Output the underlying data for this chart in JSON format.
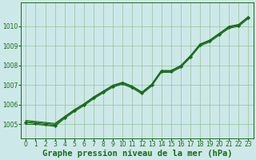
{
  "title": "Graphe pression niveau de la mer (hPa)",
  "bg_color": "#cde8e8",
  "plot_bg_color": "#cde8e8",
  "grid_color": "#88bb88",
  "line_color": "#1a6b1a",
  "marker_color": "#1a6b1a",
  "xlim": [
    -0.5,
    23.5
  ],
  "ylim": [
    1004.3,
    1011.2
  ],
  "yticks": [
    1005,
    1006,
    1007,
    1008,
    1009,
    1010
  ],
  "xticks": [
    0,
    1,
    2,
    3,
    4,
    5,
    6,
    7,
    8,
    9,
    10,
    11,
    12,
    13,
    14,
    15,
    16,
    17,
    18,
    19,
    20,
    21,
    22,
    23
  ],
  "series": [
    [
      1005.2,
      1005.15,
      1005.1,
      1005.05,
      1005.4,
      1005.75,
      1006.05,
      1006.4,
      1006.7,
      1007.0,
      1007.15,
      1006.95,
      1006.65,
      1007.05,
      1007.75,
      1007.75,
      1008.0,
      1008.5,
      1009.1,
      1009.3,
      1009.65,
      1010.0,
      1010.1,
      1010.5
    ],
    [
      1005.1,
      1005.05,
      1005.0,
      1004.95,
      1005.35,
      1005.7,
      1006.0,
      1006.35,
      1006.65,
      1006.95,
      1007.1,
      1006.9,
      1006.6,
      1007.0,
      1007.7,
      1007.7,
      1007.95,
      1008.45,
      1009.05,
      1009.25,
      1009.6,
      1009.95,
      1010.05,
      1010.45
    ],
    [
      1005.15,
      1005.1,
      1005.05,
      1005.0,
      1005.38,
      1005.72,
      1006.02,
      1006.37,
      1006.67,
      1006.97,
      1007.12,
      1006.92,
      1006.62,
      1007.02,
      1007.72,
      1007.72,
      1007.97,
      1008.47,
      1009.07,
      1009.27,
      1009.62,
      1009.97,
      1010.07,
      1010.47
    ],
    [
      1005.0,
      1005.0,
      1004.95,
      1004.9,
      1005.3,
      1005.65,
      1005.95,
      1006.3,
      1006.6,
      1006.9,
      1007.05,
      1006.85,
      1006.55,
      1006.95,
      1007.65,
      1007.65,
      1007.9,
      1008.4,
      1009.0,
      1009.2,
      1009.55,
      1009.9,
      1010.0,
      1010.4
    ]
  ],
  "marker_series_idx": 1,
  "title_fontsize": 7.5,
  "tick_fontsize": 5.5,
  "linewidth": 0.8,
  "markersize": 2.2
}
